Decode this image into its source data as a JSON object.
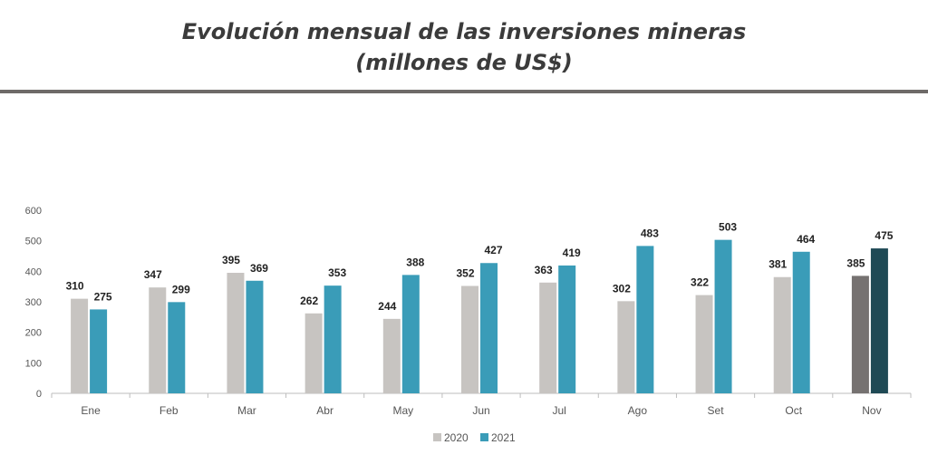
{
  "title_line1": "Evolución mensual de las inversiones mineras",
  "title_line2": "(millones de US$)",
  "chart_data": {
    "type": "bar",
    "categories": [
      "Ene",
      "Feb",
      "Mar",
      "Abr",
      "May",
      "Jun",
      "Jul",
      "Ago",
      "Set",
      "Oct",
      "Nov"
    ],
    "series": [
      {
        "name": "2020",
        "values": [
          310,
          347,
          395,
          262,
          244,
          352,
          363,
          302,
          322,
          381,
          385
        ],
        "color": "#c7c4c1",
        "highlight_color": "#767271"
      },
      {
        "name": "2021",
        "values": [
          275,
          299,
          369,
          353,
          388,
          427,
          419,
          483,
          503,
          464,
          475
        ],
        "color": "#3a9cb8",
        "highlight_color": "#1f4a55"
      }
    ],
    "highlight_category": "Nov",
    "yticks": [
      0,
      100,
      200,
      300,
      400,
      500,
      600
    ],
    "ylim": [
      0,
      600
    ],
    "grid": false,
    "legend_position": "bottom-center",
    "title": "Evolución mensual de las inversiones mineras (millones de US$)"
  }
}
